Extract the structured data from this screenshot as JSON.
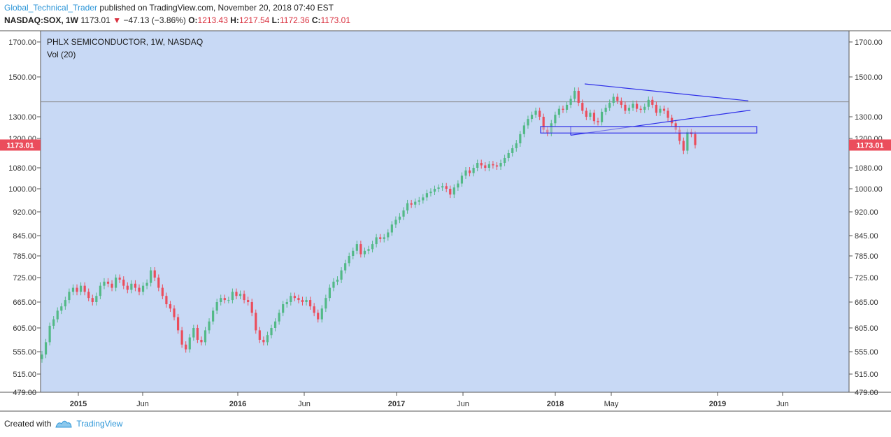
{
  "header": {
    "author": "Global_Technical_Trader",
    "published_text": "published on TradingView.com, November 20, 2018 07:40 EST",
    "symbol": "NASDAQ:SOX, 1W",
    "last": "1173.01",
    "change_arrow": "▼",
    "change": "−47.13 (−3.86%)",
    "o_label": "O:",
    "o_value": "1213.43",
    "h_label": "H:",
    "h_value": "1217.54",
    "l_label": "L:",
    "l_value": "1172.36",
    "c_label": "C:",
    "c_value": "1173.01"
  },
  "footer": {
    "created_with": "Created with",
    "brand": "TradingView"
  },
  "colors": {
    "background": "#c8d9f5",
    "up": "#53b987",
    "down": "#eb4d5c",
    "trendline": "#2e2ee8",
    "hline": "#888888",
    "price_badge": "#eb4d5c"
  },
  "chart_data": {
    "type": "candlestick",
    "title": "PHLX SEMICONDUCTOR, 1W, NASDAQ",
    "indicator": "Vol (20)",
    "ylim": [
      479,
      1700
    ],
    "y_ticks": [
      "1700.00",
      "1500.00",
      "1300.00",
      "1200.00",
      "1080.00",
      "1000.00",
      "920.00",
      "845.00",
      "785.00",
      "725.00",
      "665.00",
      "605.00",
      "555.00",
      "515.00",
      "479.00"
    ],
    "x_ticks": [
      "2015",
      "Jun",
      "2016",
      "Jun",
      "2017",
      "Jun",
      "2018",
      "May",
      "2019",
      "Jun"
    ],
    "last_price": "1173.01",
    "horizontal_line": 1375,
    "support_zone": [
      1225,
      1255
    ],
    "closes": [
      550,
      575,
      610,
      625,
      645,
      655,
      670,
      690,
      700,
      690,
      705,
      690,
      675,
      665,
      680,
      705,
      715,
      710,
      700,
      725,
      720,
      705,
      695,
      710,
      700,
      690,
      705,
      712,
      745,
      725,
      700,
      680,
      660,
      650,
      630,
      600,
      570,
      560,
      585,
      605,
      580,
      575,
      600,
      620,
      645,
      665,
      675,
      670,
      670,
      690,
      680,
      685,
      670,
      665,
      640,
      600,
      580,
      575,
      590,
      605,
      620,
      640,
      660,
      665,
      680,
      675,
      670,
      665,
      670,
      655,
      640,
      625,
      650,
      675,
      700,
      715,
      720,
      745,
      765,
      785,
      800,
      820,
      790,
      800,
      805,
      820,
      840,
      835,
      840,
      855,
      880,
      895,
      905,
      925,
      950,
      945,
      955,
      960,
      970,
      985,
      990,
      1000,
      1005,
      1010,
      1000,
      980,
      1005,
      1020,
      1050,
      1070,
      1060,
      1080,
      1100,
      1090,
      1080,
      1095,
      1090,
      1085,
      1100,
      1120,
      1140,
      1160,
      1180,
      1220,
      1260,
      1290,
      1310,
      1330,
      1300,
      1240,
      1225,
      1270,
      1310,
      1340,
      1335,
      1360,
      1390,
      1430,
      1370,
      1330,
      1300,
      1320,
      1280,
      1275,
      1325,
      1345,
      1370,
      1400,
      1380,
      1360,
      1330,
      1345,
      1365,
      1340,
      1335,
      1350,
      1385,
      1360,
      1320,
      1340,
      1330,
      1295,
      1270,
      1240,
      1190,
      1150,
      1230,
      1220,
      1173
    ]
  }
}
